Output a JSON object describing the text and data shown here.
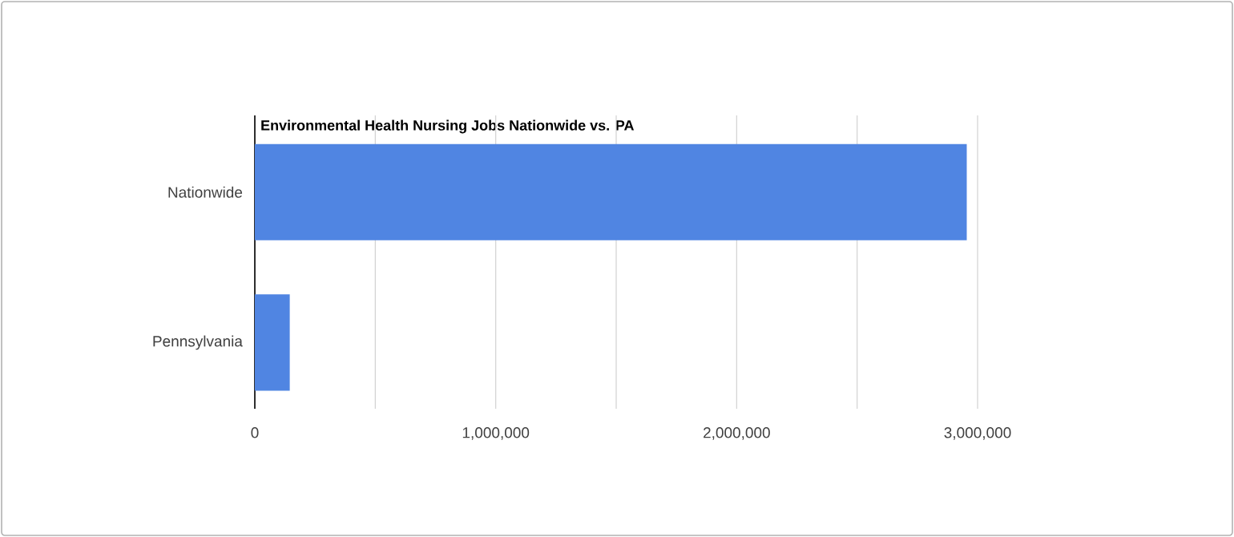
{
  "chart_data": {
    "type": "bar",
    "orientation": "horizontal",
    "title": "Environmental Health Nursing Jobs Nationwide vs. PA",
    "categories": [
      "Nationwide",
      "Pennsylvania"
    ],
    "values": [
      2955000,
      145000
    ],
    "color": "#5085e2",
    "xlim": [
      0,
      3000000
    ],
    "xticks": [
      0,
      {
        "value": 500000,
        "label": null
      },
      {
        "value": 1000000,
        "label": "1,000,000"
      },
      {
        "value": 1500000,
        "label": null
      },
      {
        "value": 2000000,
        "label": "2,000,000"
      },
      {
        "value": 2500000,
        "label": null
      },
      {
        "value": 3000000,
        "label": "3,000,000"
      }
    ],
    "grid": "x"
  }
}
